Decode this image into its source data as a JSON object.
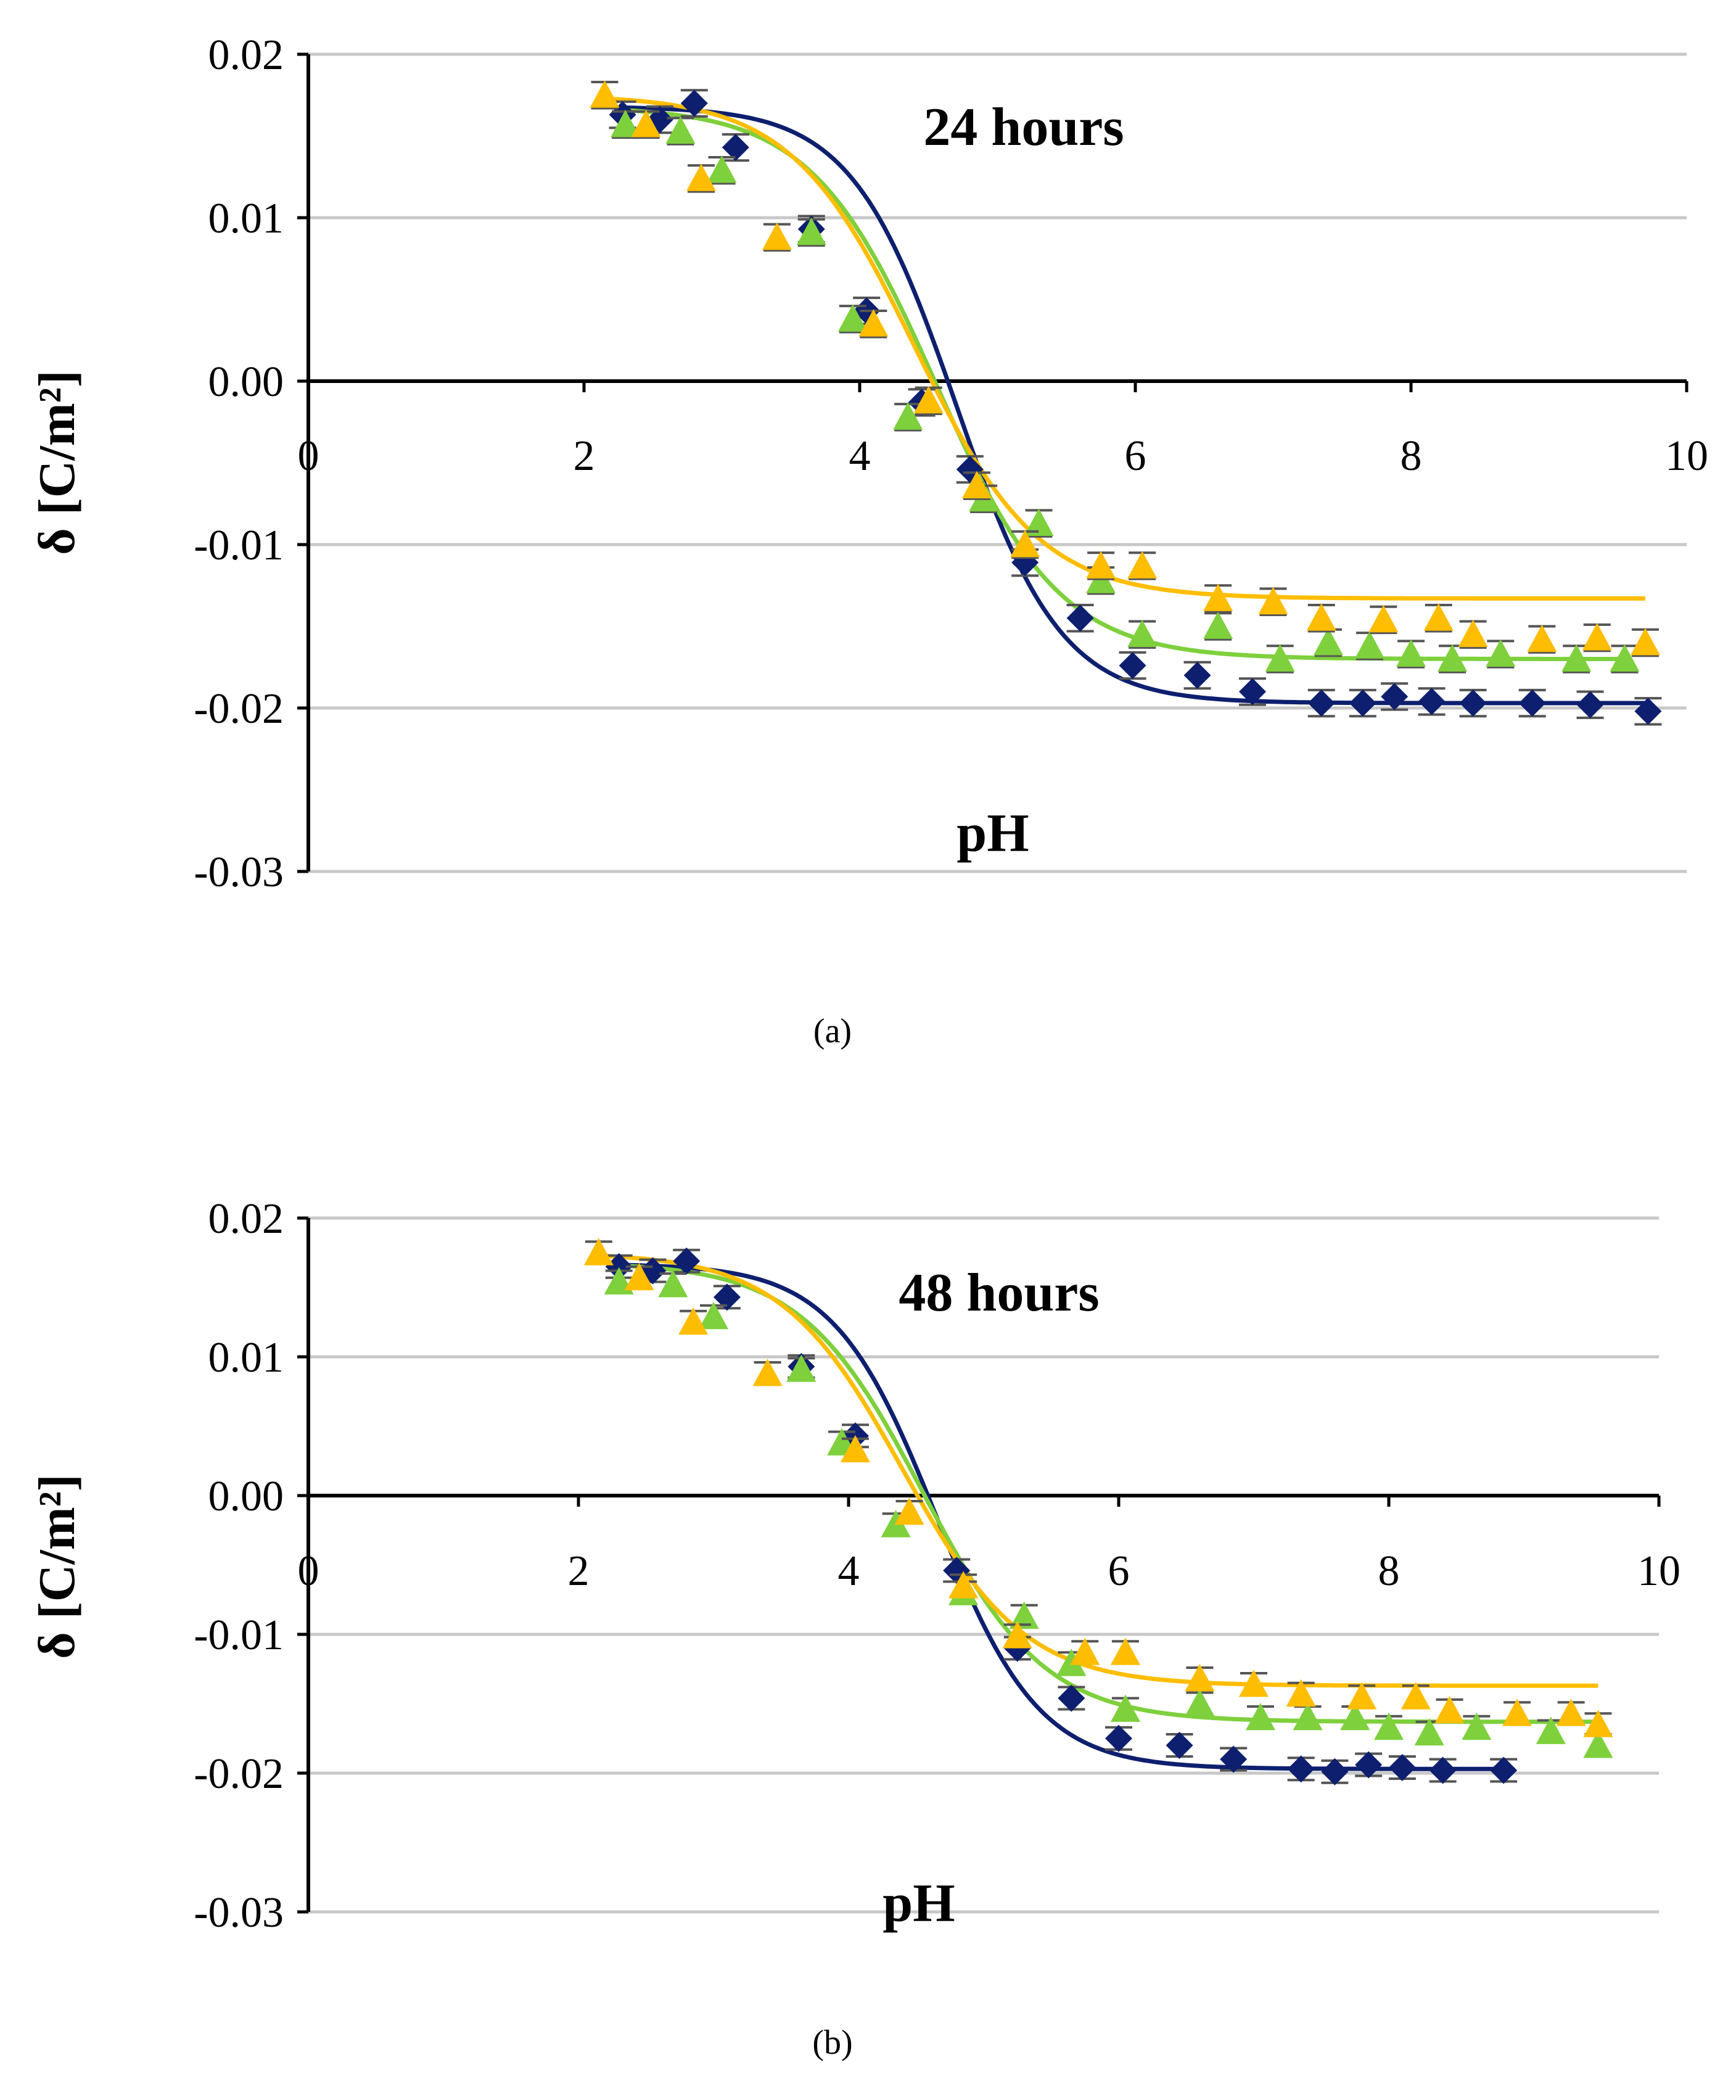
{
  "colors": {
    "series_blue": "#0d1f6e",
    "series_green": "#7ed03c",
    "series_yellow": "#ffbd00",
    "grid": "#c8c8c8",
    "axis": "#000000",
    "errorbar": "#555555"
  },
  "chart_data": [
    {
      "type": "scatter",
      "caption": "(a)",
      "annotation": "24 hours",
      "xlabel": "pH",
      "ylabel": "δ [C/m²]",
      "xlim": [
        0,
        10
      ],
      "ylim": [
        -0.03,
        0.02
      ],
      "x_ticks": [
        "0",
        "2",
        "4",
        "6",
        "8",
        "10"
      ],
      "y_ticks": [
        "0.02",
        "0.01",
        "0.00",
        "-0.01",
        "-0.02",
        "-0.03"
      ],
      "grid": true,
      "series": [
        {
          "name": "blue",
          "marker": "diamond",
          "color": "#0d1f6e",
          "x": [
            2.28,
            2.55,
            2.8,
            3.1,
            3.65,
            4.05,
            4.45,
            4.8,
            5.2,
            5.6,
            5.98,
            6.45,
            6.85,
            7.35,
            7.65,
            7.88,
            8.15,
            8.45,
            8.88,
            9.3,
            9.72
          ],
          "y": [
            0.0163,
            0.016,
            0.017,
            0.0143,
            0.0093,
            0.0043,
            -0.0013,
            -0.0054,
            -0.0111,
            -0.0145,
            -0.0174,
            -0.018,
            -0.019,
            -0.0197,
            -0.0197,
            -0.0193,
            -0.0196,
            -0.0197,
            -0.0197,
            -0.0198,
            -0.0202
          ],
          "fit": {
            "high": 0.0168,
            "low": -0.0197,
            "mid": 4.7,
            "width": 0.38
          }
        },
        {
          "name": "green",
          "marker": "triangle",
          "color": "#7ed03c",
          "x": [
            2.3,
            2.7,
            3.0,
            3.65,
            3.95,
            4.35,
            4.9,
            5.3,
            5.75,
            6.05,
            6.6,
            7.05,
            7.4,
            7.7,
            8.0,
            8.3,
            8.65,
            9.2,
            9.55
          ],
          "y": [
            0.0157,
            0.0153,
            0.0129,
            0.0091,
            0.0038,
            -0.0022,
            -0.0072,
            -0.0087,
            -0.0122,
            -0.0155,
            -0.015,
            -0.017,
            -0.016,
            -0.0162,
            -0.0167,
            -0.017,
            -0.0167,
            -0.017,
            -0.017
          ],
          "fit": {
            "high": 0.0168,
            "low": -0.017,
            "mid": 4.55,
            "width": 0.45
          }
        },
        {
          "name": "yellow",
          "marker": "triangle",
          "color": "#ffbd00",
          "x": [
            2.15,
            2.45,
            2.85,
            3.4,
            4.1,
            4.5,
            4.85,
            5.2,
            5.75,
            6.05,
            6.6,
            7.0,
            7.35,
            7.8,
            8.2,
            8.45,
            8.95,
            9.35,
            9.7
          ],
          "y": [
            0.0175,
            0.0157,
            0.0124,
            0.0088,
            0.0035,
            -0.0012,
            -0.0064,
            -0.01,
            -0.0113,
            -0.0113,
            -0.0133,
            -0.0135,
            -0.0145,
            -0.0146,
            -0.0145,
            -0.0155,
            -0.0158,
            -0.0157,
            -0.016
          ],
          "fit": {
            "high": 0.0175,
            "low": -0.0133,
            "mid": 4.4,
            "width": 0.45
          }
        }
      ]
    },
    {
      "type": "scatter",
      "caption": "(b)",
      "annotation": "48 hours",
      "xlabel": "pH",
      "ylabel": "δ [C/m²]",
      "xlim": [
        0,
        10
      ],
      "ylim": [
        -0.03,
        0.02
      ],
      "x_ticks": [
        "0",
        "2",
        "4",
        "6",
        "8",
        "10"
      ],
      "y_ticks": [
        "0.02",
        "0.01",
        "0.00",
        "-0.01",
        "-0.02",
        "-0.03"
      ],
      "grid": true,
      "series": [
        {
          "name": "blue",
          "marker": "diamond",
          "color": "#0d1f6e",
          "x": [
            2.3,
            2.55,
            2.8,
            3.1,
            3.65,
            4.05,
            4.8,
            5.25,
            5.65,
            6.0,
            6.45,
            6.85,
            7.35,
            7.6,
            7.85,
            8.1,
            8.4,
            8.85
          ],
          "y": [
            0.0165,
            0.0162,
            0.0169,
            0.0143,
            0.0093,
            0.0043,
            -0.0054,
            -0.011,
            -0.0146,
            -0.0175,
            -0.018,
            -0.019,
            -0.0197,
            -0.0199,
            -0.0194,
            -0.0196,
            -0.0198,
            -0.0198
          ],
          "fit": {
            "high": 0.0167,
            "low": -0.0197,
            "mid": 4.65,
            "width": 0.38
          }
        },
        {
          "name": "green",
          "marker": "triangle",
          "color": "#7ed03c",
          "x": [
            2.3,
            2.7,
            3.0,
            3.65,
            3.95,
            4.35,
            4.85,
            5.3,
            5.65,
            6.05,
            6.6,
            7.05,
            7.4,
            7.75,
            8.0,
            8.3,
            8.65,
            9.2,
            9.55
          ],
          "y": [
            0.0154,
            0.0152,
            0.0129,
            0.0091,
            0.0038,
            -0.0021,
            -0.007,
            -0.0087,
            -0.0121,
            -0.0154,
            -0.015,
            -0.016,
            -0.016,
            -0.016,
            -0.0167,
            -0.0171,
            -0.0167,
            -0.017,
            -0.018
          ],
          "fit": {
            "high": 0.0168,
            "low": -0.0163,
            "mid": 4.55,
            "width": 0.45
          }
        },
        {
          "name": "yellow",
          "marker": "triangle",
          "color": "#ffbd00",
          "x": [
            2.15,
            2.45,
            2.85,
            3.4,
            4.05,
            4.45,
            4.85,
            5.25,
            5.75,
            6.05,
            6.6,
            7.0,
            7.35,
            7.8,
            8.2,
            8.45,
            8.95,
            9.35,
            9.55
          ],
          "y": [
            0.0175,
            0.0157,
            0.0125,
            0.0088,
            0.0033,
            -0.0012,
            -0.0065,
            -0.0101,
            -0.0113,
            -0.0113,
            -0.0132,
            -0.0136,
            -0.0143,
            -0.0145,
            -0.0145,
            -0.0155,
            -0.0157,
            -0.0157,
            -0.0165
          ],
          "fit": {
            "high": 0.0175,
            "low": -0.0137,
            "mid": 4.4,
            "width": 0.45
          }
        }
      ]
    }
  ]
}
